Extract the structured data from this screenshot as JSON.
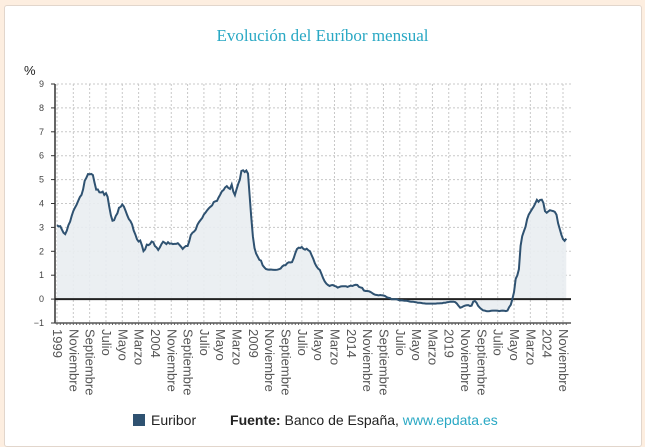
{
  "chart_data": {
    "type": "area",
    "title": "Evolución del Euríbor mensual",
    "ylabel": "%",
    "xlabel": "",
    "ylim": [
      -1,
      9
    ],
    "yticks": [
      -1,
      0,
      1,
      2,
      3,
      4,
      5,
      6,
      7,
      8,
      9
    ],
    "xtick_labels": [
      "1999",
      "Noviembre",
      "Septiembre",
      "Julio",
      "Mayo",
      "Marzo",
      "2004",
      "Noviembre",
      "Septiembre",
      "Julio",
      "Mayo",
      "Marzo",
      "2009",
      "Noviembre",
      "Septiembre",
      "Julio",
      "Mayo",
      "Marzo",
      "2014",
      "Noviembre",
      "Septiembre",
      "Julio",
      "Mayo",
      "Marzo",
      "2019",
      "Noviembre",
      "Septiembre",
      "Julio",
      "Mayo",
      "Marzo",
      "2024",
      "Noviembre"
    ],
    "grid": true,
    "legend_position": "bottom",
    "series": [
      {
        "name": "Euribor",
        "color": "#2f5271",
        "values_by_year": {
          "1999": [
            3.09,
            3.04,
            3.05,
            2.91,
            2.78,
            2.72,
            2.86,
            3.09,
            3.24,
            3.48,
            3.68,
            3.83
          ],
          "2000": [
            3.95,
            4.11,
            4.27,
            4.36,
            4.59,
            4.95,
            5.08,
            5.23,
            5.22,
            5.24,
            5.19,
            4.88
          ],
          "2001": [
            4.58,
            4.59,
            4.47,
            4.46,
            4.5,
            4.36,
            4.43,
            4.28,
            3.88,
            3.5,
            3.28,
            3.3
          ],
          "2002": [
            3.48,
            3.59,
            3.82,
            3.86,
            3.96,
            3.87,
            3.69,
            3.51,
            3.35,
            3.26,
            3.12,
            2.87
          ],
          "2003": [
            2.71,
            2.5,
            2.41,
            2.45,
            2.25,
            2.01,
            2.08,
            2.28,
            2.26,
            2.3,
            2.41,
            2.38
          ],
          "2004": [
            2.22,
            2.16,
            2.06,
            2.16,
            2.3,
            2.4,
            2.36,
            2.3,
            2.38,
            2.32,
            2.33,
            2.3
          ],
          "2005": [
            2.31,
            2.31,
            2.34,
            2.27,
            2.19,
            2.1,
            2.17,
            2.22,
            2.22,
            2.41,
            2.68,
            2.78
          ],
          "2006": [
            2.83,
            2.91,
            3.11,
            3.22,
            3.31,
            3.4,
            3.54,
            3.62,
            3.72,
            3.8,
            3.86,
            3.92
          ],
          "2007": [
            4.06,
            4.09,
            4.11,
            4.25,
            4.37,
            4.51,
            4.56,
            4.67,
            4.73,
            4.65,
            4.61,
            4.79
          ],
          "2008": [
            4.5,
            4.35,
            4.59,
            4.82,
            4.99,
            5.36,
            5.39,
            5.32,
            5.38,
            5.25,
            4.35,
            3.45
          ],
          "2009": [
            2.62,
            2.14,
            1.91,
            1.77,
            1.64,
            1.61,
            1.41,
            1.33,
            1.26,
            1.24,
            1.23,
            1.24
          ],
          "2010": [
            1.23,
            1.22,
            1.22,
            1.23,
            1.25,
            1.28,
            1.37,
            1.42,
            1.42,
            1.5,
            1.54,
            1.53
          ],
          "2011": [
            1.55,
            1.71,
            1.92,
            2.09,
            2.15,
            2.14,
            2.18,
            2.1,
            2.07,
            2.11,
            2.04,
            2.0
          ],
          "2012": [
            1.84,
            1.68,
            1.5,
            1.37,
            1.27,
            1.22,
            1.06,
            0.88,
            0.74,
            0.65,
            0.59,
            0.55
          ],
          "2013": [
            0.58,
            0.59,
            0.55,
            0.53,
            0.48,
            0.51,
            0.53,
            0.54,
            0.54,
            0.54,
            0.51,
            0.54
          ],
          "2014": [
            0.56,
            0.55,
            0.58,
            0.6,
            0.59,
            0.51,
            0.49,
            0.47,
            0.36,
            0.34,
            0.34,
            0.33
          ],
          "2015": [
            0.3,
            0.26,
            0.21,
            0.18,
            0.17,
            0.16,
            0.17,
            0.16,
            0.15,
            0.13,
            0.08,
            0.06
          ],
          "2016": [
            0.04,
            -0.01,
            -0.01,
            -0.01,
            -0.01,
            -0.03,
            -0.06,
            -0.05,
            -0.06,
            -0.07,
            -0.07,
            -0.08
          ],
          "2017": [
            -0.1,
            -0.11,
            -0.11,
            -0.12,
            -0.13,
            -0.15,
            -0.15,
            -0.16,
            -0.17,
            -0.18,
            -0.19,
            -0.19
          ],
          "2018": [
            -0.19,
            -0.19,
            -0.19,
            -0.19,
            -0.19,
            -0.18,
            -0.18,
            -0.17,
            -0.17,
            -0.15,
            -0.15,
            -0.13
          ],
          "2019": [
            -0.12,
            -0.11,
            -0.11,
            -0.11,
            -0.13,
            -0.19,
            -0.28,
            -0.36,
            -0.34,
            -0.3,
            -0.27,
            -0.26
          ],
          "2020": [
            -0.25,
            -0.29,
            -0.27,
            -0.11,
            -0.08,
            -0.15,
            -0.28,
            -0.36,
            -0.42,
            -0.47,
            -0.48,
            -0.5
          ],
          "2021": [
            -0.51,
            -0.5,
            -0.49,
            -0.48,
            -0.48,
            -0.48,
            -0.49,
            -0.5,
            -0.49,
            -0.48,
            -0.49,
            -0.5
          ],
          "2022": [
            -0.48,
            -0.34,
            -0.24,
            0.01,
            0.29,
            0.85,
            0.99,
            1.25,
            2.23,
            2.63,
            2.83,
            3.02
          ],
          "2023": [
            3.34,
            3.53,
            3.65,
            3.76,
            3.86,
            4.01,
            4.15,
            4.07,
            4.15,
            4.16,
            4.02,
            3.68
          ],
          "2024": [
            3.61,
            3.67,
            3.72,
            3.7,
            3.68,
            3.65,
            3.53,
            3.17,
            2.94,
            2.69,
            2.51,
            2.44
          ],
          "2025": [
            2.53
          ]
        }
      }
    ]
  },
  "legend": {
    "series_label": "Euribor",
    "source_label": "Fuente:",
    "source_text": " Banco de España, ",
    "source_link": "www.epdata.es"
  }
}
